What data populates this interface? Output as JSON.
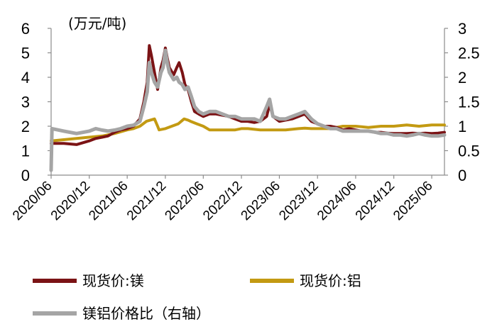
{
  "chart_data": {
    "type": "line",
    "unit_label": "(万元/吨)",
    "left_axis": {
      "ylim": [
        0,
        6
      ],
      "ticks": [
        "0",
        "1",
        "2",
        "3",
        "4",
        "5",
        "6"
      ]
    },
    "right_axis": {
      "ylim": [
        0,
        3
      ],
      "ticks": [
        "0",
        "0.5",
        "1",
        "1.5",
        "2",
        "2.5",
        "3"
      ]
    },
    "x_ticks": [
      "2020/06",
      "2020/12",
      "2021/06",
      "2021/12",
      "2022/06",
      "2022/12",
      "2023/06",
      "2023/12",
      "2024/06",
      "2024/12",
      "2025/06"
    ],
    "x_range": [
      "2020-06",
      "2025-08"
    ],
    "grid": false,
    "legend_position": "bottom",
    "series": [
      {
        "name": "现货价:镁",
        "axis": "left",
        "color": "#7b1315",
        "points": [
          [
            "2020-06",
            1.3
          ],
          [
            "2020-08",
            1.3
          ],
          [
            "2020-10",
            1.25
          ],
          [
            "2020-12",
            1.4
          ],
          [
            "2021-01",
            1.5
          ],
          [
            "2021-02",
            1.55
          ],
          [
            "2021-03",
            1.6
          ],
          [
            "2021-04",
            1.75
          ],
          [
            "2021-05",
            1.85
          ],
          [
            "2021-06",
            1.9
          ],
          [
            "2021-07",
            2.0
          ],
          [
            "2021-08",
            2.3
          ],
          [
            "2021-08-20",
            3.0
          ],
          [
            "2021-09-05",
            3.8
          ],
          [
            "2021-09-15",
            5.3
          ],
          [
            "2021-09-25",
            4.9
          ],
          [
            "2021-10-10",
            4.2
          ],
          [
            "2021-10-25",
            3.5
          ],
          [
            "2021-11-10",
            4.4
          ],
          [
            "2021-11-20",
            4.7
          ],
          [
            "2021-12-01",
            5.2
          ],
          [
            "2021-12-10",
            4.8
          ],
          [
            "2021-12-20",
            4.4
          ],
          [
            "2022-01-10",
            4.1
          ],
          [
            "2022-01-25",
            4.4
          ],
          [
            "2022-02-05",
            4.6
          ],
          [
            "2022-02-20",
            4.2
          ],
          [
            "2022-03-05",
            3.7
          ],
          [
            "2022-03-20",
            3.5
          ],
          [
            "2022-04-05",
            3.0
          ],
          [
            "2022-04-20",
            2.6
          ],
          [
            "2022-05-10",
            2.5
          ],
          [
            "2022-06",
            2.4
          ],
          [
            "2022-07",
            2.5
          ],
          [
            "2022-08",
            2.5
          ],
          [
            "2022-09",
            2.45
          ],
          [
            "2022-10",
            2.4
          ],
          [
            "2022-11",
            2.3
          ],
          [
            "2022-12",
            2.2
          ],
          [
            "2023-01",
            2.2
          ],
          [
            "2023-02",
            2.15
          ],
          [
            "2023-03",
            2.2
          ],
          [
            "2023-04",
            2.4
          ],
          [
            "2023-04-15",
            2.9
          ],
          [
            "2023-05",
            2.4
          ],
          [
            "2023-06",
            2.2
          ],
          [
            "2023-07",
            2.25
          ],
          [
            "2023-08",
            2.3
          ],
          [
            "2023-09",
            2.4
          ],
          [
            "2023-10",
            2.5
          ],
          [
            "2023-11",
            2.2
          ],
          [
            "2023-12",
            2.1
          ],
          [
            "2024-01",
            2.0
          ],
          [
            "2024-02",
            2.0
          ],
          [
            "2024-03",
            1.95
          ],
          [
            "2024-04",
            1.85
          ],
          [
            "2024-05",
            1.9
          ],
          [
            "2024-06",
            1.85
          ],
          [
            "2024-07",
            1.8
          ],
          [
            "2024-08",
            1.8
          ],
          [
            "2024-09",
            1.75
          ],
          [
            "2024-10",
            1.75
          ],
          [
            "2024-11",
            1.72
          ],
          [
            "2024-12",
            1.7
          ],
          [
            "2025-01",
            1.7
          ],
          [
            "2025-02",
            1.7
          ],
          [
            "2025-03",
            1.72
          ],
          [
            "2025-04",
            1.7
          ],
          [
            "2025-05",
            1.72
          ],
          [
            "2025-06",
            1.7
          ],
          [
            "2025-07",
            1.72
          ],
          [
            "2025-08",
            1.75
          ]
        ]
      },
      {
        "name": "现货价:铝",
        "axis": "left",
        "color": "#c39a12",
        "points": [
          [
            "2020-06",
            1.4
          ],
          [
            "2020-08",
            1.45
          ],
          [
            "2020-10",
            1.5
          ],
          [
            "2020-12",
            1.55
          ],
          [
            "2021-02",
            1.6
          ],
          [
            "2021-04",
            1.7
          ],
          [
            "2021-06",
            1.85
          ],
          [
            "2021-07",
            1.9
          ],
          [
            "2021-08",
            2.0
          ],
          [
            "2021-09",
            2.2
          ],
          [
            "2021-10-10",
            2.3
          ],
          [
            "2021-10-25",
            2.0
          ],
          [
            "2021-11",
            1.85
          ],
          [
            "2021-12",
            1.9
          ],
          [
            "2022-01",
            2.0
          ],
          [
            "2022-02",
            2.1
          ],
          [
            "2022-03",
            2.3
          ],
          [
            "2022-03-20",
            2.25
          ],
          [
            "2022-04",
            2.2
          ],
          [
            "2022-05",
            2.1
          ],
          [
            "2022-06",
            2.0
          ],
          [
            "2022-07",
            1.85
          ],
          [
            "2022-08",
            1.85
          ],
          [
            "2022-09",
            1.85
          ],
          [
            "2022-10",
            1.85
          ],
          [
            "2022-11",
            1.85
          ],
          [
            "2022-12",
            1.9
          ],
          [
            "2023-01",
            1.9
          ],
          [
            "2023-03",
            1.85
          ],
          [
            "2023-05",
            1.85
          ],
          [
            "2023-07",
            1.85
          ],
          [
            "2023-09",
            1.9
          ],
          [
            "2023-10",
            1.92
          ],
          [
            "2023-11",
            1.9
          ],
          [
            "2023-12",
            1.9
          ],
          [
            "2024-02",
            1.9
          ],
          [
            "2024-04",
            2.0
          ],
          [
            "2024-06",
            2.0
          ],
          [
            "2024-08",
            1.95
          ],
          [
            "2024-10",
            2.0
          ],
          [
            "2024-12",
            2.0
          ],
          [
            "2025-02",
            2.05
          ],
          [
            "2025-04",
            2.0
          ],
          [
            "2025-06",
            2.05
          ],
          [
            "2025-08",
            2.05
          ]
        ]
      },
      {
        "name": "镁铝价格比（右轴）",
        "axis": "right",
        "color": "#a5a5a5",
        "points": [
          [
            "2020-06",
            0.1
          ],
          [
            "2020-06-05",
            0.95
          ],
          [
            "2020-08",
            0.9
          ],
          [
            "2020-10",
            0.85
          ],
          [
            "2020-12",
            0.9
          ],
          [
            "2021-01",
            0.95
          ],
          [
            "2021-02",
            0.92
          ],
          [
            "2021-03",
            0.9
          ],
          [
            "2021-04",
            0.92
          ],
          [
            "2021-05",
            0.95
          ],
          [
            "2021-06",
            1.0
          ],
          [
            "2021-07",
            1.02
          ],
          [
            "2021-08",
            1.1
          ],
          [
            "2021-08-20",
            1.4
          ],
          [
            "2021-09-05",
            1.7
          ],
          [
            "2021-09-15",
            2.3
          ],
          [
            "2021-09-25",
            2.1
          ],
          [
            "2021-10-10",
            1.9
          ],
          [
            "2021-10-25",
            1.8
          ],
          [
            "2021-11-10",
            2.1
          ],
          [
            "2021-11-20",
            2.2
          ],
          [
            "2021-12-01",
            2.55
          ],
          [
            "2021-12-10",
            2.3
          ],
          [
            "2021-12-20",
            2.1
          ],
          [
            "2022-01-10",
            1.95
          ],
          [
            "2022-01-25",
            2.0
          ],
          [
            "2022-02-05",
            1.9
          ],
          [
            "2022-02-20",
            1.85
          ],
          [
            "2022-03-05",
            1.75
          ],
          [
            "2022-03-20",
            1.8
          ],
          [
            "2022-04-05",
            1.6
          ],
          [
            "2022-04-20",
            1.4
          ],
          [
            "2022-05-10",
            1.3
          ],
          [
            "2022-06",
            1.25
          ],
          [
            "2022-07",
            1.3
          ],
          [
            "2022-08",
            1.3
          ],
          [
            "2022-09",
            1.25
          ],
          [
            "2022-10",
            1.2
          ],
          [
            "2022-11",
            1.2
          ],
          [
            "2022-12",
            1.15
          ],
          [
            "2023-01",
            1.15
          ],
          [
            "2023-02",
            1.15
          ],
          [
            "2023-03",
            1.1
          ],
          [
            "2023-04",
            1.4
          ],
          [
            "2023-04-15",
            1.55
          ],
          [
            "2023-05",
            1.2
          ],
          [
            "2023-06",
            1.15
          ],
          [
            "2023-07",
            1.15
          ],
          [
            "2023-08",
            1.2
          ],
          [
            "2023-09",
            1.25
          ],
          [
            "2023-10",
            1.3
          ],
          [
            "2023-11",
            1.15
          ],
          [
            "2023-12",
            1.05
          ],
          [
            "2024-01",
            1.0
          ],
          [
            "2024-02",
            0.95
          ],
          [
            "2024-03",
            0.95
          ],
          [
            "2024-04",
            0.9
          ],
          [
            "2024-05",
            0.9
          ],
          [
            "2024-06",
            0.9
          ],
          [
            "2024-07",
            0.9
          ],
          [
            "2024-08",
            0.9
          ],
          [
            "2024-09",
            0.88
          ],
          [
            "2024-10",
            0.85
          ],
          [
            "2024-11",
            0.85
          ],
          [
            "2024-12",
            0.82
          ],
          [
            "2025-01",
            0.82
          ],
          [
            "2025-02",
            0.8
          ],
          [
            "2025-03",
            0.82
          ],
          [
            "2025-04",
            0.85
          ],
          [
            "2025-05",
            0.82
          ],
          [
            "2025-06",
            0.8
          ],
          [
            "2025-07",
            0.8
          ],
          [
            "2025-08",
            0.82
          ]
        ]
      }
    ]
  }
}
